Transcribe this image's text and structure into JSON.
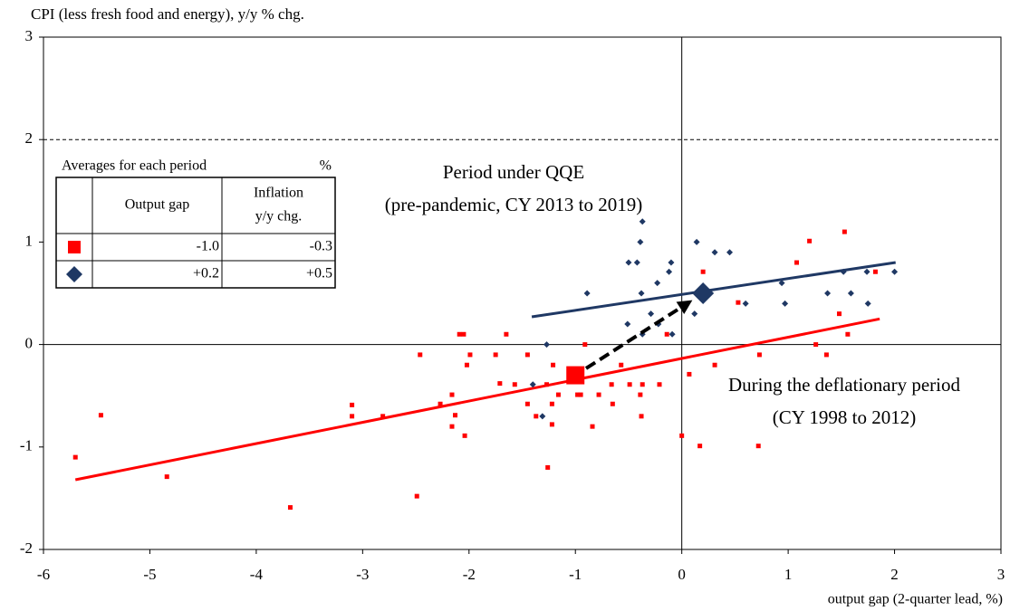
{
  "chart_data": {
    "type": "scatter",
    "y_label": "CPI (less fresh food and energy), y/y % chg.",
    "x_label": "output gap (2-quarter lead, %)",
    "xlim": [
      -6,
      3
    ],
    "xticks": [
      -6,
      -5,
      -4,
      -3,
      -2,
      -1,
      0,
      1,
      2,
      3
    ],
    "ylim": [
      -2,
      3
    ],
    "yticks": [
      -2,
      -1,
      0,
      1,
      2,
      3
    ],
    "reference_lines": [
      2
    ],
    "series": [
      {
        "color": "#ff0000",
        "marker": "square",
        "x": [
          -5.7,
          -5.46,
          -4.84,
          -3.68,
          -3.1,
          -3.1,
          -2.81,
          -2.49,
          -2.46,
          -2.27,
          -2.16,
          -2.13,
          -2.16,
          -2.09,
          -2.05,
          -2.04,
          -2.02,
          -1.99,
          -1.75,
          -1.71,
          -1.65,
          -1.57,
          -1.45,
          -1.45,
          -1.37,
          -1.27,
          -1.26,
          -1.22,
          -1.22,
          -1.21,
          -1.16,
          -0.98,
          -0.95,
          -0.91,
          -0.84,
          -0.78,
          -0.66,
          -0.65,
          -0.57,
          -0.49,
          -0.39,
          -0.38,
          -0.37,
          -0.21,
          -0.14,
          0.0,
          0.07,
          0.17,
          0.2,
          0.31,
          0.53,
          0.72,
          0.73,
          1.08,
          1.2,
          1.26,
          1.36,
          1.48,
          1.53,
          1.56,
          1.82
        ],
        "values": [
          -1.1,
          -0.69,
          -1.29,
          -1.59,
          -0.59,
          -0.7,
          -0.7,
          -1.48,
          -0.1,
          -0.58,
          -0.49,
          -0.69,
          -0.8,
          0.1,
          0.1,
          -0.89,
          -0.2,
          -0.1,
          -0.1,
          -0.38,
          0.1,
          -0.39,
          -0.1,
          -0.58,
          -0.7,
          -0.39,
          -1.2,
          -0.58,
          -0.78,
          -0.2,
          -0.49,
          -0.49,
          -0.49,
          0.0,
          -0.8,
          -0.49,
          -0.39,
          -0.58,
          -0.2,
          -0.39,
          -0.49,
          -0.7,
          -0.39,
          -0.39,
          0.1,
          -0.89,
          -0.29,
          -0.99,
          0.71,
          -0.2,
          0.41,
          -0.99,
          -0.1,
          0.8,
          1.01,
          0.0,
          -0.1,
          0.3,
          1.1,
          0.1,
          0.71
        ]
      },
      {
        "color": "#1f3864",
        "marker": "diamond",
        "x": [
          -1.27,
          -1.31,
          -1.4,
          -0.89,
          -0.51,
          -0.5,
          -0.42,
          -0.39,
          -0.38,
          -0.37,
          -0.37,
          -0.29,
          -0.23,
          -0.22,
          -0.12,
          -0.1,
          -0.09,
          0.12,
          0.14,
          0.31,
          0.45,
          0.6,
          0.94,
          0.97,
          1.37,
          1.52,
          1.59,
          1.74,
          1.75,
          2.0
        ],
        "values": [
          0.0,
          -0.7,
          -0.39,
          0.5,
          0.2,
          0.8,
          0.8,
          1.0,
          0.5,
          1.2,
          0.1,
          0.3,
          0.6,
          0.2,
          0.71,
          0.8,
          0.1,
          0.3,
          1.0,
          0.9,
          0.9,
          0.4,
          0.6,
          0.4,
          0.5,
          0.71,
          0.5,
          0.71,
          0.4,
          0.71
        ]
      }
    ],
    "trend_lines": [
      {
        "color": "#ff0000",
        "x": [
          -5.7,
          1.86
        ],
        "values": [
          -1.32,
          0.25
        ]
      },
      {
        "color": "#1f3864",
        "x": [
          -1.41,
          2.01
        ],
        "values": [
          0.27,
          0.8
        ]
      }
    ],
    "averages": [
      {
        "color": "#ff0000",
        "marker": "square",
        "x": -1.0,
        "y": -0.3
      },
      {
        "color": "#1f3864",
        "marker": "diamond",
        "x": 0.2,
        "y": 0.5
      }
    ],
    "annotations": [
      {
        "color": "#1f3864",
        "lines": [
          "Period under QQE",
          "(pre-pandemic, CY 2013 to 2019)"
        ]
      },
      {
        "color": "#ff0000",
        "lines": [
          "During the deflationary period",
          "(CY 1998 to 2012)"
        ]
      }
    ],
    "table": {
      "title": "Averages for each period",
      "unit": "%",
      "columns": [
        [
          "Output gap"
        ],
        [
          "Inflation",
          "y/y chg."
        ]
      ],
      "rows": [
        [
          "-1.0",
          "-0.3"
        ],
        [
          "+0.2",
          "+0.5"
        ]
      ]
    }
  }
}
